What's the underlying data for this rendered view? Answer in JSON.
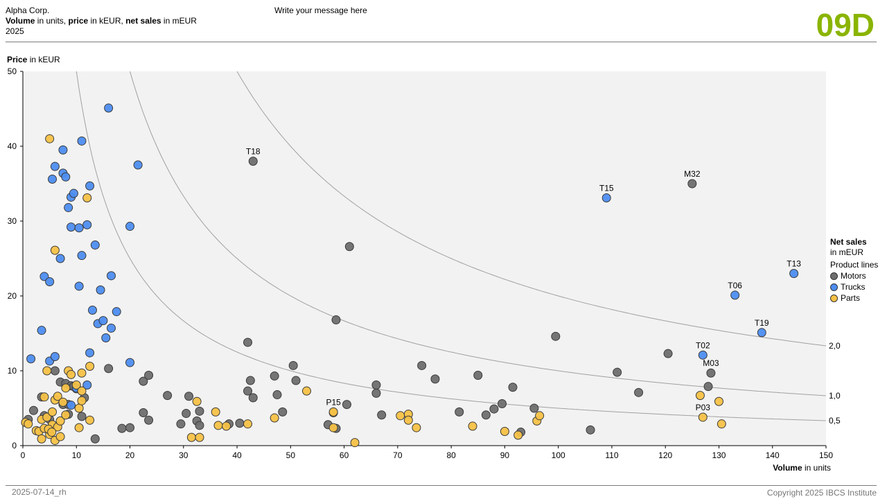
{
  "header": {
    "company": "Alpha Corp.",
    "measures": {
      "volume": "Volume",
      "volume_unit": " in units, ",
      "price": "price",
      "price_unit": " in kEUR, ",
      "net_sales": "net sales",
      "net_sales_unit": " in mEUR"
    },
    "year": "2025",
    "message": "Write your message here",
    "code": "09D"
  },
  "footer": {
    "left": "2025-07-14_rh",
    "right": "Copyright 2025 IBCS Institute"
  },
  "colors": {
    "code": "#8ab400",
    "Motors": "#6e6e6e",
    "Trucks": "#4d8df0",
    "Parts": "#f6c146",
    "plot_bg": "#f2f2f2"
  },
  "legend": {
    "title": "Net sales",
    "unit": "in mEUR",
    "subtitle": "Product lines",
    "items": [
      {
        "name": "Motors"
      },
      {
        "name": "Trucks"
      },
      {
        "name": "Parts"
      }
    ]
  },
  "chart_data": {
    "type": "scatter",
    "ylabel": "Price",
    "ylabel_unit": " in kEUR",
    "xlabel": "Volume",
    "xlabel_unit": " in units",
    "xlim": [
      0,
      150
    ],
    "ylim": [
      0,
      50
    ],
    "xticks": [
      0,
      10,
      20,
      30,
      40,
      50,
      60,
      70,
      80,
      90,
      100,
      110,
      120,
      130,
      140,
      150
    ],
    "yticks": [
      0,
      10,
      20,
      30,
      40,
      50
    ],
    "iso_lines": [
      {
        "value": 0.5,
        "label": "0,5"
      },
      {
        "value": 1.0,
        "label": "1,0"
      },
      {
        "value": 2.0,
        "label": "2,0"
      }
    ],
    "series": [
      {
        "name": "Motors",
        "points": [
          [
            1,
            3.5
          ],
          [
            2,
            4.7
          ],
          [
            3.5,
            6.5
          ],
          [
            4,
            4
          ],
          [
            5,
            3.5
          ],
          [
            6,
            10
          ],
          [
            7,
            8.5
          ],
          [
            7.5,
            5.5
          ],
          [
            8,
            8.3
          ],
          [
            8.5,
            5.5
          ],
          [
            8.5,
            4.2
          ],
          [
            9,
            8
          ],
          [
            9.5,
            7.9
          ],
          [
            10,
            7.6
          ],
          [
            11,
            3.9
          ],
          [
            11.5,
            6.4
          ],
          [
            13.5,
            0.9
          ],
          [
            16,
            10.3
          ],
          [
            18.5,
            2.3
          ],
          [
            20,
            2.4
          ],
          [
            22.5,
            8.6
          ],
          [
            22.5,
            4.4
          ],
          [
            23.5,
            9.4
          ],
          [
            23.5,
            3.4
          ],
          [
            27,
            6.7
          ],
          [
            29.5,
            2.9
          ],
          [
            30.5,
            4.3
          ],
          [
            31,
            6.6
          ],
          [
            32.5,
            3.3
          ],
          [
            33,
            2.7
          ],
          [
            33,
            4.6
          ],
          [
            38.5,
            2.9
          ],
          [
            40.5,
            3
          ],
          [
            42,
            13.8
          ],
          [
            42,
            7.3
          ],
          [
            42.5,
            8.7
          ],
          [
            43,
            6.4
          ],
          [
            47,
            9.3
          ],
          [
            47.5,
            6.8
          ],
          [
            48.5,
            4.5
          ],
          [
            50.5,
            10.7
          ],
          [
            51,
            8.7
          ],
          [
            57,
            2.8
          ],
          [
            58.5,
            2.3
          ],
          [
            58.5,
            16.8
          ],
          [
            60.5,
            5.5
          ],
          [
            61,
            26.6
          ],
          [
            66,
            8.1
          ],
          [
            66,
            7
          ],
          [
            67,
            4.1
          ],
          [
            74.5,
            10.7
          ],
          [
            77,
            8.9
          ],
          [
            81.5,
            4.5
          ],
          [
            85,
            9.4
          ],
          [
            86.5,
            4.1
          ],
          [
            88,
            4.9
          ],
          [
            89.5,
            5.6
          ],
          [
            91.5,
            7.8
          ],
          [
            93,
            1.8
          ],
          [
            95.5,
            5
          ],
          [
            99.5,
            14.6
          ],
          [
            106,
            2.1
          ],
          [
            111,
            9.8
          ],
          [
            115,
            7.1
          ],
          [
            120.5,
            12.3
          ],
          [
            125,
            35,
            "M32"
          ],
          [
            128,
            7.9
          ],
          [
            128.5,
            9.7,
            "M03"
          ],
          [
            43,
            38,
            "T18"
          ]
        ]
      },
      {
        "name": "Trucks",
        "points": [
          [
            1.5,
            11.6
          ],
          [
            3.5,
            15.4
          ],
          [
            4,
            22.6
          ],
          [
            5,
            11.3
          ],
          [
            5.5,
            35.6
          ],
          [
            5,
            21.9
          ],
          [
            6,
            37.3
          ],
          [
            6,
            11.9
          ],
          [
            7,
            25
          ],
          [
            7.5,
            39.5
          ],
          [
            7.5,
            36.4
          ],
          [
            8,
            35.9
          ],
          [
            8.5,
            31.8
          ],
          [
            9,
            29.2
          ],
          [
            9,
            33.2
          ],
          [
            9.5,
            33.7
          ],
          [
            10.5,
            21.3
          ],
          [
            10.5,
            29.1
          ],
          [
            11,
            25.4
          ],
          [
            11,
            40.7
          ],
          [
            12,
            29.5
          ],
          [
            12.5,
            34.7
          ],
          [
            12.5,
            12.4
          ],
          [
            13,
            18.1
          ],
          [
            13.5,
            26.8
          ],
          [
            14,
            16.3
          ],
          [
            14.5,
            20.8
          ],
          [
            15,
            16.7
          ],
          [
            15.5,
            14.4
          ],
          [
            16,
            45.1
          ],
          [
            16.5,
            15.7
          ],
          [
            16.5,
            22.7
          ],
          [
            17.5,
            17.9
          ],
          [
            20,
            29.3
          ],
          [
            20,
            11.1
          ],
          [
            21.5,
            37.5
          ],
          [
            12,
            8.1
          ],
          [
            9,
            5.4
          ],
          [
            10,
            7.7
          ],
          [
            109,
            33.1,
            "T15"
          ],
          [
            127,
            12.1,
            "T02"
          ],
          [
            133,
            20.1,
            "T06"
          ],
          [
            138,
            15.1,
            "T19"
          ],
          [
            144,
            23,
            "T13"
          ]
        ]
      },
      {
        "name": "Parts",
        "points": [
          [
            0.5,
            3.1
          ],
          [
            1,
            2.9
          ],
          [
            2.5,
            2
          ],
          [
            3,
            1.9
          ],
          [
            3.5,
            0.9
          ],
          [
            3.5,
            3.5
          ],
          [
            4,
            2.3
          ],
          [
            4,
            6.5
          ],
          [
            4.5,
            3.8
          ],
          [
            4.5,
            10
          ],
          [
            5,
            1.5
          ],
          [
            5,
            41
          ],
          [
            5.5,
            2.8
          ],
          [
            5.5,
            4.5
          ],
          [
            6,
            0.7
          ],
          [
            6,
            6.1
          ],
          [
            6,
            26.1
          ],
          [
            6.5,
            6.6
          ],
          [
            6.5,
            2.5
          ],
          [
            7,
            1.2
          ],
          [
            7,
            3.3
          ],
          [
            7.5,
            5.8
          ],
          [
            8,
            4.1
          ],
          [
            8,
            7.7
          ],
          [
            8.5,
            10
          ],
          [
            9,
            9.5
          ],
          [
            10,
            8.1
          ],
          [
            10.5,
            5
          ],
          [
            10.5,
            2.4
          ],
          [
            11,
            6
          ],
          [
            11,
            9.7
          ],
          [
            11,
            7.3
          ],
          [
            12,
            33.1
          ],
          [
            12.5,
            3.4
          ],
          [
            12.5,
            10.6
          ],
          [
            31.5,
            1.1
          ],
          [
            32.5,
            5.9
          ],
          [
            33,
            1.1
          ],
          [
            36,
            4.5
          ],
          [
            36.5,
            2.7
          ],
          [
            38,
            2.6
          ],
          [
            42,
            2.9
          ],
          [
            47,
            3.7
          ],
          [
            53,
            7.3
          ],
          [
            58,
            4.4
          ],
          [
            58,
            2.4
          ],
          [
            62,
            0.4
          ],
          [
            70.5,
            4
          ],
          [
            72,
            4.2
          ],
          [
            72,
            3.4
          ],
          [
            73.5,
            2.4
          ],
          [
            84,
            2.6
          ],
          [
            90,
            1.9
          ],
          [
            92.5,
            1.4
          ],
          [
            96,
            3.3
          ],
          [
            96.5,
            4
          ],
          [
            127,
            3.8,
            "P03"
          ],
          [
            126.5,
            6.7
          ],
          [
            130,
            5.9
          ],
          [
            130.5,
            2.9
          ],
          [
            58,
            4.5,
            "P15"
          ],
          [
            4.8,
            2.2
          ],
          [
            5.4,
            1.8
          ]
        ]
      }
    ]
  }
}
